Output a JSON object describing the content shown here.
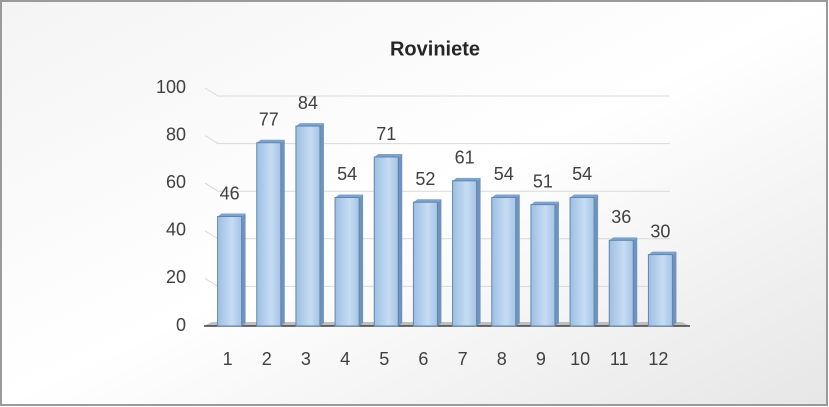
{
  "chart_data": {
    "type": "bar",
    "title": "Roviniete",
    "categories": [
      "1",
      "2",
      "3",
      "4",
      "5",
      "6",
      "7",
      "8",
      "9",
      "10",
      "11",
      "12"
    ],
    "values": [
      46,
      77,
      84,
      54,
      71,
      52,
      61,
      54,
      51,
      54,
      36,
      30
    ],
    "color": "#a9c8e8",
    "ylim": [
      0,
      100
    ],
    "yticks": [
      0,
      20,
      40,
      60,
      80,
      100
    ],
    "grid": true
  }
}
